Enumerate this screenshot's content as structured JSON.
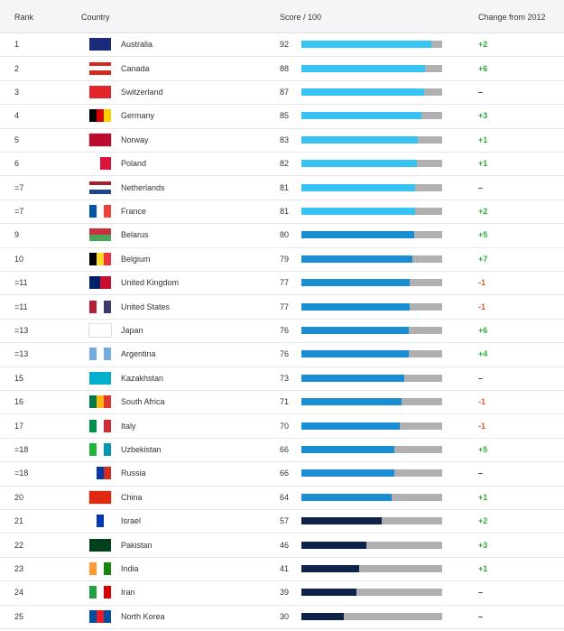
{
  "header": [
    "Rank",
    "Country",
    "Score / 100",
    "Change from 2012"
  ],
  "scale": [
    0,
    100
  ],
  "rows": [
    {
      "rank": "1",
      "country": "Australia",
      "score": 92,
      "change": "+2",
      "bar_color": "#38c4f2"
    },
    {
      "rank": "2",
      "country": "Canada",
      "score": 88,
      "change": "+6",
      "bar_color": "#38c4f2"
    },
    {
      "rank": "3",
      "country": "Switzerland",
      "score": 87,
      "change": "–",
      "bar_color": "#38c4f2"
    },
    {
      "rank": "4",
      "country": "Germany",
      "score": 85,
      "change": "+3",
      "bar_color": "#38c4f2"
    },
    {
      "rank": "5",
      "country": "Norway",
      "score": 83,
      "change": "+1",
      "bar_color": "#38c4f2"
    },
    {
      "rank": "6",
      "country": "Poland",
      "score": 82,
      "change": "+1",
      "bar_color": "#38c4f2"
    },
    {
      "rank": "=7",
      "country": "Netherlands",
      "score": 81,
      "change": "–",
      "bar_color": "#38c4f2"
    },
    {
      "rank": "=7",
      "country": "France",
      "score": 81,
      "change": "+2",
      "bar_color": "#38c4f2"
    },
    {
      "rank": "9",
      "country": "Belarus",
      "score": 80,
      "change": "+5",
      "bar_color": "#1b8dd2"
    },
    {
      "rank": "10",
      "country": "Belgium",
      "score": 79,
      "change": "+7",
      "bar_color": "#1b8dd2"
    },
    {
      "rank": "=11",
      "country": "United Kingdom",
      "score": 77,
      "change": "-1",
      "bar_color": "#1b8dd2"
    },
    {
      "rank": "=11",
      "country": "United States",
      "score": 77,
      "change": "-1",
      "bar_color": "#1b8dd2"
    },
    {
      "rank": "=13",
      "country": "Japan",
      "score": 76,
      "change": "+6",
      "bar_color": "#1b8dd2"
    },
    {
      "rank": "=13",
      "country": "Argentina",
      "score": 76,
      "change": "+4",
      "bar_color": "#1b8dd2"
    },
    {
      "rank": "15",
      "country": "Kazakhstan",
      "score": 73,
      "change": "–",
      "bar_color": "#1b8dd2"
    },
    {
      "rank": "16",
      "country": "South Africa",
      "score": 71,
      "change": "-1",
      "bar_color": "#1b8dd2"
    },
    {
      "rank": "17",
      "country": "Italy",
      "score": 70,
      "change": "-1",
      "bar_color": "#1b8dd2"
    },
    {
      "rank": "=18",
      "country": "Uzbekistan",
      "score": 66,
      "change": "+5",
      "bar_color": "#1b8dd2"
    },
    {
      "rank": "=18",
      "country": "Russia",
      "score": 66,
      "change": "–",
      "bar_color": "#1b8dd2"
    },
    {
      "rank": "20",
      "country": "China",
      "score": 64,
      "change": "+1",
      "bar_color": "#1b8dd2"
    },
    {
      "rank": "21",
      "country": "Israel",
      "score": 57,
      "change": "+2",
      "bar_color": "#0d2448"
    },
    {
      "rank": "22",
      "country": "Pakistan",
      "score": 46,
      "change": "+3",
      "bar_color": "#0d2448"
    },
    {
      "rank": "23",
      "country": "India",
      "score": 41,
      "change": "+1",
      "bar_color": "#0d2448"
    },
    {
      "rank": "24",
      "country": "Iran",
      "score": 39,
      "change": "–",
      "bar_color": "#0d2448"
    },
    {
      "rank": "25",
      "country": "North Korea",
      "score": 30,
      "change": "–",
      "bar_color": "#0d2448"
    }
  ]
}
